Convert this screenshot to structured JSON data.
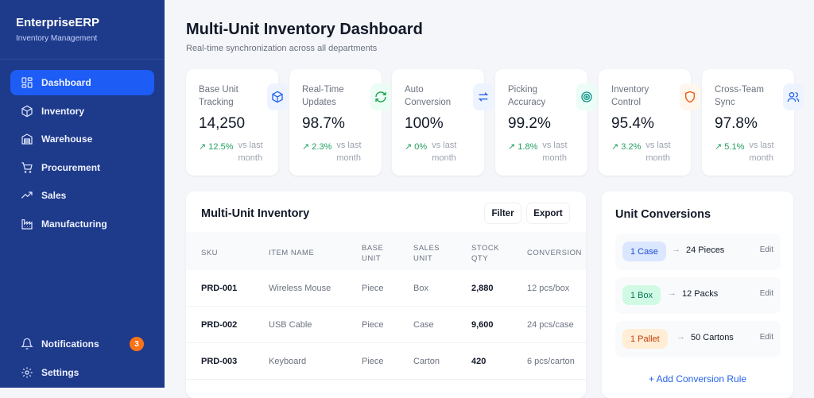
{
  "sidebar": {
    "brand": "EnterpriseERP",
    "subtitle": "Inventory Management",
    "items": [
      {
        "label": "Dashboard",
        "icon": "grid-icon",
        "active": true
      },
      {
        "label": "Inventory",
        "icon": "box-icon"
      },
      {
        "label": "Warehouse",
        "icon": "warehouse-icon"
      },
      {
        "label": "Procurement",
        "icon": "cart-icon"
      },
      {
        "label": "Sales",
        "icon": "trending-up-icon"
      },
      {
        "label": "Manufacturing",
        "icon": "factory-icon"
      }
    ],
    "notifications": {
      "label": "Notifications",
      "count": "3"
    },
    "settings": {
      "label": "Settings"
    }
  },
  "header": {
    "title": "Multi-Unit Inventory Dashboard",
    "subtitle": "Real-time synchronization across all departments"
  },
  "cards": [
    {
      "label": "Base Unit Tracking",
      "value": "14,250",
      "trend": "12.5%",
      "vs": "vs last month",
      "icon": "box-icon",
      "color": "#2563eb",
      "bg": "#eef4ff"
    },
    {
      "label": "Real-Time Updates",
      "value": "98.7%",
      "trend": "2.3%",
      "vs": "vs last month",
      "icon": "refresh-icon",
      "color": "#16a34a",
      "bg": "#ecfdf5"
    },
    {
      "label": "Auto Conversion",
      "value": "100%",
      "trend": "0%",
      "vs": "vs last month",
      "icon": "swap-icon",
      "color": "#2563eb",
      "bg": "#eef4ff"
    },
    {
      "label": "Picking Accuracy",
      "value": "99.2%",
      "trend": "1.8%",
      "vs": "vs last month",
      "icon": "target-icon",
      "color": "#0d9488",
      "bg": "#ecfdf7"
    },
    {
      "label": "Inventory Control",
      "value": "95.4%",
      "trend": "3.2%",
      "vs": "vs last month",
      "icon": "shield-icon",
      "color": "#ea580c",
      "bg": "#fff7ed"
    },
    {
      "label": "Cross-Team Sync",
      "value": "97.8%",
      "trend": "5.1%",
      "vs": "vs last month",
      "icon": "users-icon",
      "color": "#2563eb",
      "bg": "#eef4ff"
    }
  ],
  "inventory": {
    "title": "Multi-Unit Inventory",
    "filter": "Filter",
    "export": "Export",
    "columns": [
      "SKU",
      "ITEM NAME",
      "BASE UNIT",
      "SALES UNIT",
      "STOCK QTY",
      "CONVERSION"
    ],
    "rows": [
      [
        "PRD-001",
        "Wireless Mouse",
        "Piece",
        "Box",
        "2,880",
        "12 pcs/box"
      ],
      [
        "PRD-002",
        "USB Cable",
        "Piece",
        "Case",
        "9,600",
        "24 pcs/case"
      ],
      [
        "PRD-003",
        "Keyboard",
        "Piece",
        "Carton",
        "420",
        "6 pcs/carton"
      ]
    ]
  },
  "conversions": {
    "title": "Unit Conversions",
    "items": [
      {
        "from": "1 Case",
        "to": "24 Pieces",
        "edit": "Edit",
        "color": "#1d4ed8",
        "bg": "#dbe7fe"
      },
      {
        "from": "1 Box",
        "to": "12 Packs",
        "edit": "Edit",
        "color": "#047857",
        "bg": "#d1fae5"
      },
      {
        "from": "1 Pallet",
        "to": "50 Cartons",
        "edit": "Edit",
        "color": "#c2410c",
        "bg": "#ffedd5"
      }
    ],
    "add": "+ Add Conversion Rule",
    "arrow": "→"
  }
}
